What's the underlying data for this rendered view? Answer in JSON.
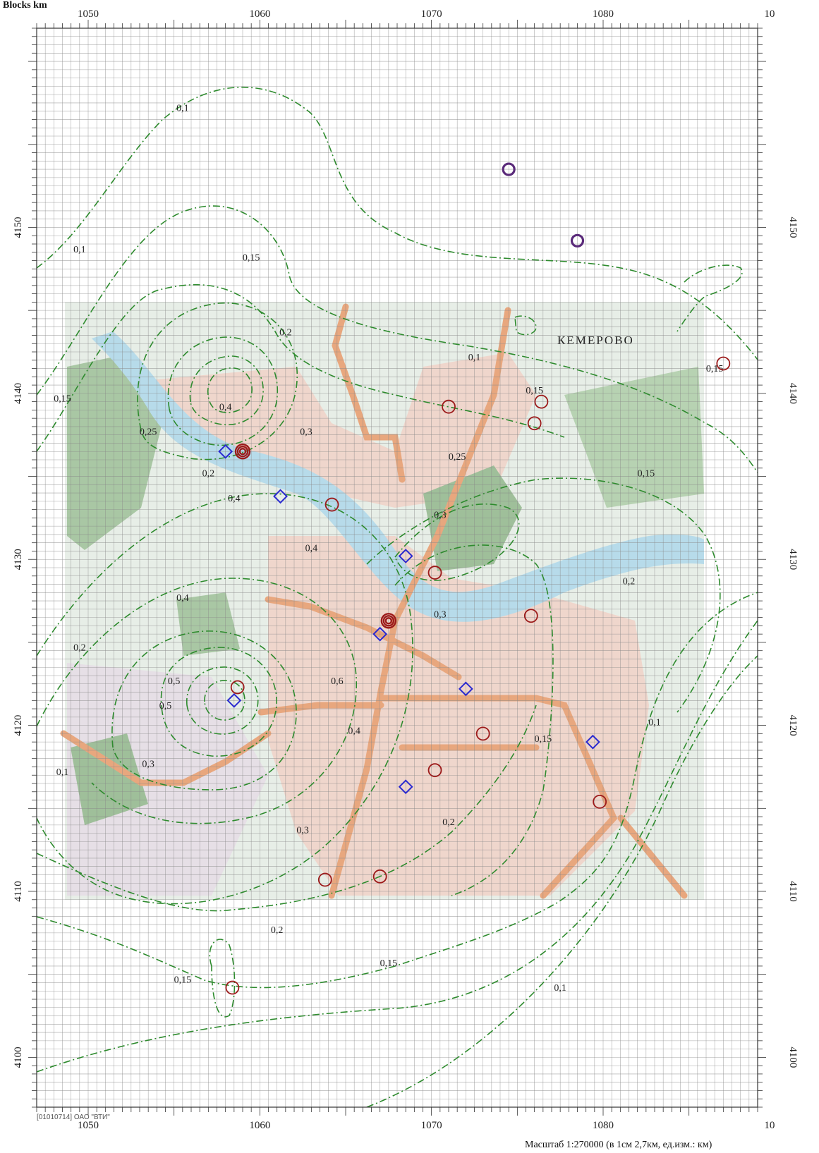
{
  "header": {
    "title": "Blocks km"
  },
  "city": {
    "name": "КЕМЕРОВО"
  },
  "footer": {
    "copyright": "[01010714] ОАО \"ВТИ\"",
    "scale": "Масштаб 1:270000 (в 1см 2,7км, ед.изм.: км)"
  },
  "axes": {
    "x_ticks": [
      "1050",
      "1060",
      "1070",
      "1080",
      "10"
    ],
    "y_ticks": [
      "4150",
      "4140",
      "4130",
      "4120",
      "4110",
      "4100"
    ],
    "x_range": [
      1047,
      1089
    ],
    "y_range": [
      4097,
      4162
    ]
  },
  "contour_labels": [
    {
      "text": "0,1",
      "x": 1055.5,
      "y": 4157
    },
    {
      "text": "0,1",
      "x": 1049.5,
      "y": 4148.5
    },
    {
      "text": "0,15",
      "x": 1059.5,
      "y": 4148
    },
    {
      "text": "0,2",
      "x": 1061.5,
      "y": 4143.5
    },
    {
      "text": "0,3",
      "x": 1062.7,
      "y": 4137.5
    },
    {
      "text": "0,4",
      "x": 1058,
      "y": 4139
    },
    {
      "text": "0,2",
      "x": 1057,
      "y": 4135
    },
    {
      "text": "0,25",
      "x": 1053.5,
      "y": 4137.5
    },
    {
      "text": "0,15",
      "x": 1048.5,
      "y": 4139.5
    },
    {
      "text": "0,1",
      "x": 1072.5,
      "y": 4142
    },
    {
      "text": "0,15",
      "x": 1076,
      "y": 4140
    },
    {
      "text": "0,15",
      "x": 1086.5,
      "y": 4141.3
    },
    {
      "text": "0,2",
      "x": 1081.5,
      "y": 4128.5
    },
    {
      "text": "0,15",
      "x": 1082.5,
      "y": 4135
    },
    {
      "text": "0,25",
      "x": 1071.5,
      "y": 4136
    },
    {
      "text": "0,3",
      "x": 1070.5,
      "y": 4132.5
    },
    {
      "text": "0,4",
      "x": 1058.5,
      "y": 4133.5
    },
    {
      "text": "0,3",
      "x": 1070.5,
      "y": 4126.5
    },
    {
      "text": "0,4",
      "x": 1063,
      "y": 4130.5
    },
    {
      "text": "0,5",
      "x": 1054.5,
      "y": 4121
    },
    {
      "text": "0,4",
      "x": 1055.5,
      "y": 4127.5
    },
    {
      "text": "0,3",
      "x": 1053.5,
      "y": 4117.5
    },
    {
      "text": "0,2",
      "x": 1049.5,
      "y": 4124.5
    },
    {
      "text": "0,1",
      "x": 1048.5,
      "y": 4117
    },
    {
      "text": "0,5",
      "x": 1055,
      "y": 4122.5
    },
    {
      "text": "0,6",
      "x": 1064.5,
      "y": 4122.5
    },
    {
      "text": "0,4",
      "x": 1065.5,
      "y": 4119.5
    },
    {
      "text": "0,15",
      "x": 1076.5,
      "y": 4119
    },
    {
      "text": "0,1",
      "x": 1083,
      "y": 4120
    },
    {
      "text": "0,3",
      "x": 1062.5,
      "y": 4113.5
    },
    {
      "text": "0,2",
      "x": 1071,
      "y": 4114
    },
    {
      "text": "0,2",
      "x": 1061,
      "y": 4107.5
    },
    {
      "text": "0,15",
      "x": 1055.5,
      "y": 4104.5
    },
    {
      "text": "0,15",
      "x": 1067.5,
      "y": 4105.5
    },
    {
      "text": "0,1",
      "x": 1077.5,
      "y": 4104
    }
  ],
  "point_sources": [
    {
      "x": 1059,
      "y": 4136.5,
      "type": "cluster"
    },
    {
      "x": 1058.7,
      "y": 4122.3,
      "type": "circle"
    },
    {
      "x": 1067.5,
      "y": 4126.3,
      "type": "cluster"
    },
    {
      "x": 1074.5,
      "y": 4153.5,
      "type": "purple"
    },
    {
      "x": 1078.5,
      "y": 4149.2,
      "type": "purple"
    },
    {
      "x": 1087,
      "y": 4141.8,
      "type": "circle"
    },
    {
      "x": 1071,
      "y": 4139.2,
      "type": "circle"
    },
    {
      "x": 1076,
      "y": 4138.2,
      "type": "circle"
    },
    {
      "x": 1076.4,
      "y": 4139.5,
      "type": "circle"
    },
    {
      "x": 1064.2,
      "y": 4133.3,
      "type": "circle"
    },
    {
      "x": 1070.2,
      "y": 4129.2,
      "type": "circle"
    },
    {
      "x": 1075.8,
      "y": 4126.6,
      "type": "circle"
    },
    {
      "x": 1073,
      "y": 4119.5,
      "type": "circle"
    },
    {
      "x": 1070.2,
      "y": 4117.3,
      "type": "circle"
    },
    {
      "x": 1079.8,
      "y": 4115.4,
      "type": "circle"
    },
    {
      "x": 1063.8,
      "y": 4110.7,
      "type": "circle"
    },
    {
      "x": 1067,
      "y": 4110.9,
      "type": "circle"
    },
    {
      "x": 1058.4,
      "y": 4104.2,
      "type": "circle"
    }
  ],
  "monitor_posts": [
    {
      "x": 1058,
      "y": 4136.5
    },
    {
      "x": 1061.2,
      "y": 4133.8
    },
    {
      "x": 1068.5,
      "y": 4130.2
    },
    {
      "x": 1067,
      "y": 4125.5
    },
    {
      "x": 1072,
      "y": 4122.2
    },
    {
      "x": 1058.5,
      "y": 4121.5
    },
    {
      "x": 1079.4,
      "y": 4119
    },
    {
      "x": 1068.5,
      "y": 4116.3
    }
  ],
  "colors": {
    "grid": "#8a8a8a",
    "contour": "#2e8b2e",
    "road": "#e8a77e",
    "water": "#b7dbea",
    "green": "#9fbf9a",
    "urban": "#efd6cc",
    "source": "#9c1a1a",
    "post": "#2a2ad0",
    "purple": "#5a2a7a"
  }
}
